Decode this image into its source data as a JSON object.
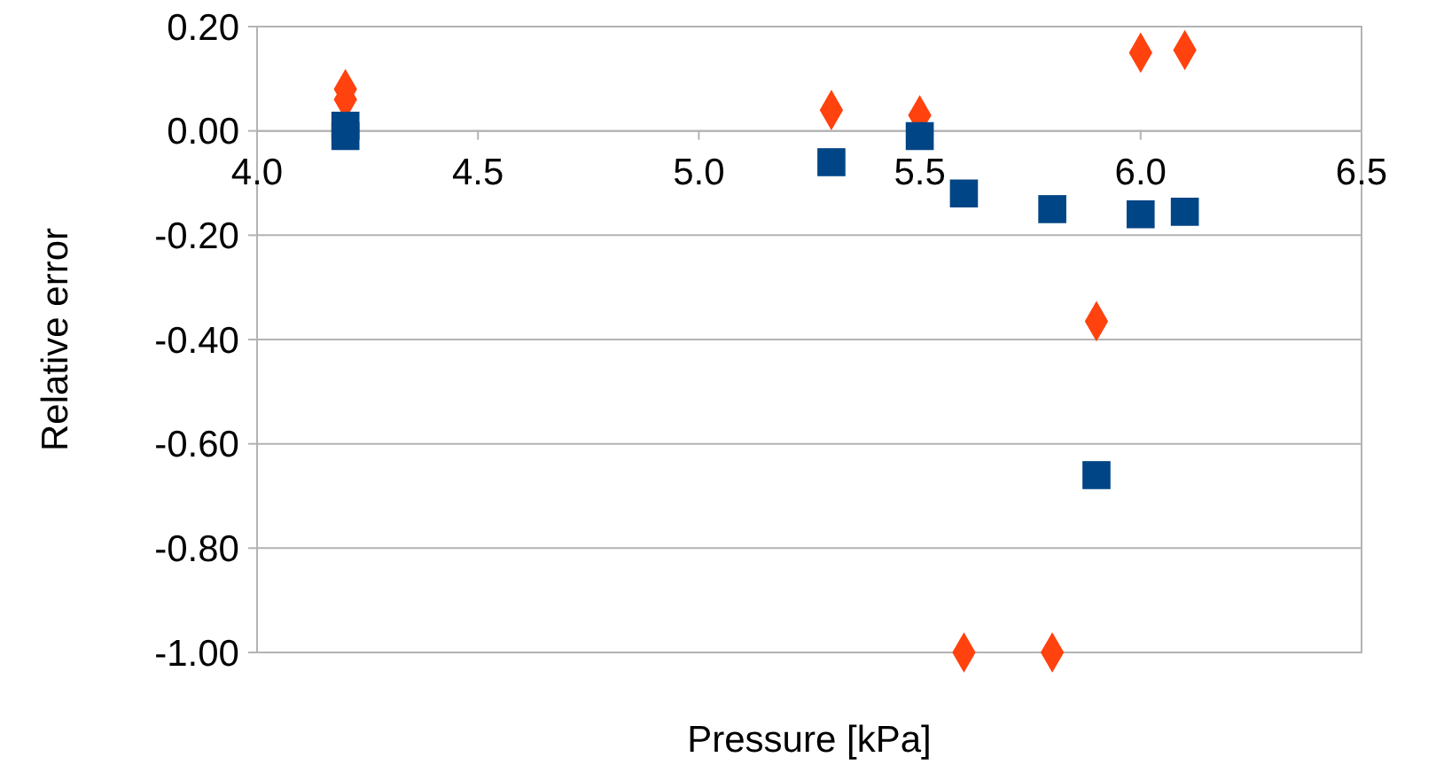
{
  "chart_data": {
    "type": "scatter",
    "xlabel": "Pressure [kPa]",
    "ylabel": "Relative error",
    "xlim": [
      4.0,
      6.5
    ],
    "xticks": [
      {
        "value": 4.0,
        "label": "4.0"
      },
      {
        "value": 4.5,
        "label": "4.5"
      },
      {
        "value": 5.0,
        "label": "5.0"
      },
      {
        "value": 5.5,
        "label": "5.5"
      },
      {
        "value": 6.0,
        "label": "6.0"
      },
      {
        "value": 6.5,
        "label": "6.5"
      }
    ],
    "ylim": [
      -1.0,
      0.2
    ],
    "yticks": [
      {
        "value": -1.0,
        "label": "-1.00"
      },
      {
        "value": -0.8,
        "label": "-0.80"
      },
      {
        "value": -0.6,
        "label": "-0.60"
      },
      {
        "value": -0.4,
        "label": "-0.40"
      },
      {
        "value": -0.2,
        "label": "-0.20"
      },
      {
        "value": 0,
        "label": "0.00"
      },
      {
        "value": 0.2,
        "label": "0.20"
      }
    ],
    "grid": "y",
    "series": [
      {
        "color": "#ff420e",
        "marker": "diamond",
        "x": [
          4.2,
          4.2,
          5.3,
          5.5,
          5.6,
          5.8,
          5.9,
          6.0,
          6.1
        ],
        "values": [
          0.08,
          0.06,
          0.04,
          0.03,
          -1.0,
          -1.0,
          -0.365,
          0.15,
          0.155
        ]
      },
      {
        "color": "#004586",
        "marker": "square",
        "x": [
          4.2,
          4.2,
          5.3,
          5.5,
          5.6,
          5.8,
          5.9,
          6.0,
          6.1
        ],
        "values": [
          0.01,
          -0.01,
          -0.06,
          -0.01,
          -0.12,
          -0.15,
          -0.66,
          -0.16,
          -0.155
        ]
      }
    ]
  }
}
